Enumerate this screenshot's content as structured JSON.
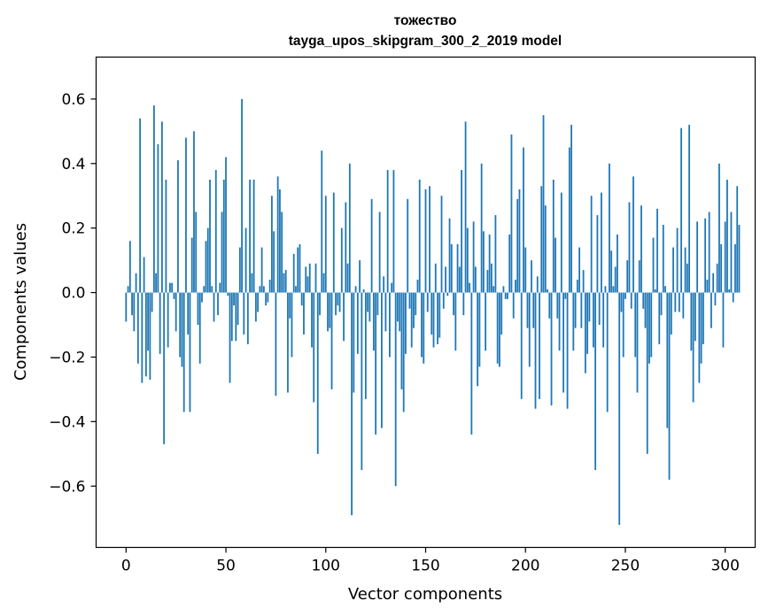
{
  "chart_data": {
    "type": "bar",
    "title": "тожество",
    "subtitle": "tayga_upos_skipgram_300_2_2019 model",
    "xlabel": "Vector components",
    "ylabel": "Components values",
    "xlim": [
      -15,
      315
    ],
    "ylim": [
      -0.79,
      0.73
    ],
    "xticks": [
      0,
      50,
      100,
      150,
      200,
      250,
      300
    ],
    "yticks": [
      -0.6,
      -0.4,
      -0.2,
      0.0,
      0.2,
      0.4,
      0.6
    ],
    "xtick_labels": [
      "0",
      "50",
      "100",
      "150",
      "200",
      "250",
      "300"
    ],
    "ytick_labels": [
      "−0.6",
      "−0.4",
      "−0.2",
      "0.0",
      "0.2",
      "0.4",
      "0.6"
    ],
    "grid": false,
    "bar_color": "#1f77b4",
    "values": [
      -0.09,
      0.02,
      0.16,
      -0.07,
      -0.12,
      0.06,
      -0.22,
      0.54,
      -0.28,
      0.11,
      -0.26,
      -0.18,
      -0.27,
      -0.06,
      0.58,
      0.06,
      0.46,
      -0.19,
      0.53,
      -0.47,
      0.35,
      -0.17,
      0.03,
      0.03,
      -0.02,
      -0.12,
      0.41,
      -0.2,
      -0.23,
      -0.37,
      0.48,
      -0.13,
      -0.37,
      0.17,
      0.5,
      0.25,
      -0.1,
      -0.22,
      -0.03,
      0.02,
      0.16,
      0.2,
      0.35,
      0.02,
      -0.09,
      0.38,
      -0.07,
      0.03,
      0.25,
      0.35,
      0.42,
      -0.01,
      -0.28,
      -0.15,
      -0.04,
      -0.15,
      -0.1,
      0.14,
      0.6,
      -0.13,
      0.2,
      -0.16,
      0.35,
      0.06,
      0.35,
      -0.09,
      -0.06,
      0.02,
      0.14,
      0.02,
      -0.04,
      -0.03,
      0.04,
      0.3,
      0.19,
      -0.32,
      0.36,
      0.32,
      0.25,
      0.06,
      0.07,
      -0.31,
      -0.08,
      -0.2,
      0.12,
      0.02,
      0.14,
      0.15,
      -0.04,
      -0.13,
      0.08,
      0.05,
      0.09,
      -0.17,
      -0.34,
      0.09,
      -0.5,
      -0.07,
      0.44,
      0.06,
      0.3,
      -0.12,
      -0.11,
      -0.3,
      0.31,
      -0.07,
      -0.04,
      -0.06,
      0.2,
      -0.15,
      0.28,
      0.09,
      0.4,
      -0.69,
      -0.31,
      0.02,
      -0.19,
      0.1,
      -0.55,
      0.01,
      -0.33,
      -0.06,
      -0.09,
      0.29,
      -0.18,
      -0.44,
      -0.07,
      0.25,
      -0.42,
      0.05,
      -0.12,
      0.38,
      -0.2,
      0.03,
      0.38,
      -0.6,
      -0.09,
      -0.12,
      -0.3,
      -0.37,
      -0.19,
      0.29,
      -0.05,
      -0.17,
      -0.11,
      -0.07,
      0.04,
      0.35,
      -0.2,
      -0.22,
      0.32,
      -0.06,
      0.33,
      -0.13,
      -0.17,
      0.09,
      -0.16,
      -0.14,
      0.3,
      -0.05,
      0.08,
      -0.01,
      0.23,
      0.15,
      -0.07,
      -0.18,
      0.15,
      0.08,
      0.38,
      -0.07,
      0.53,
      0.2,
      0.03,
      -0.44,
      0.22,
      0.08,
      -0.29,
      -0.23,
      0.4,
      0.19,
      -0.18,
      0.07,
      0.18,
      0.09,
      0.02,
      0.24,
      -0.22,
      -0.23,
      -0.13,
      0.02,
      -0.02,
      -0.02,
      0.18,
      0.49,
      -0.08,
      0.04,
      0.29,
      0.32,
      -0.33,
      0.45,
      0.14,
      -0.11,
      -0.23,
      0.1,
      -0.11,
      -0.36,
      0.05,
      -0.33,
      0.33,
      0.55,
      0.27,
      0.01,
      -0.08,
      -0.35,
      0.35,
      0.17,
      -0.08,
      -0.18,
      0.31,
      -0.31,
      -0.02,
      -0.36,
      0.45,
      0.52,
      -0.18,
      -0.11,
      0.04,
      0.14,
      -0.11,
      0.07,
      -0.25,
      -0.19,
      -0.09,
      0.3,
      -0.17,
      -0.55,
      0.24,
      -0.1,
      0.31,
      -0.17,
      0.02,
      -0.37,
      0.4,
      0.13,
      0.02,
      0.08,
      0.18,
      -0.72,
      -0.06,
      -0.2,
      -0.02,
      0.1,
      0.28,
      -0.05,
      0.36,
      -0.2,
      -0.31,
      0.1,
      0.27,
      -0.05,
      -0.11,
      -0.5,
      -0.22,
      -0.2,
      0.17,
      0.01,
      0.26,
      -0.16,
      -0.07,
      0.21,
      0.02,
      -0.42,
      -0.58,
      -0.13,
      0.14,
      -0.06,
      0.2,
      -0.06,
      0.51,
      -0.08,
      0.14,
      0.09,
      0.52,
      -0.18,
      -0.34,
      -0.15,
      0.22,
      -0.28,
      -0.22,
      -0.16,
      0.23,
      0.04,
      0.25,
      -0.11,
      0.06,
      -0.04,
      0.09,
      0.4,
      0.15,
      -0.17,
      0.22,
      0.35,
      0.01,
      0.25,
      -0.03,
      0.15,
      0.33,
      0.21
    ]
  }
}
